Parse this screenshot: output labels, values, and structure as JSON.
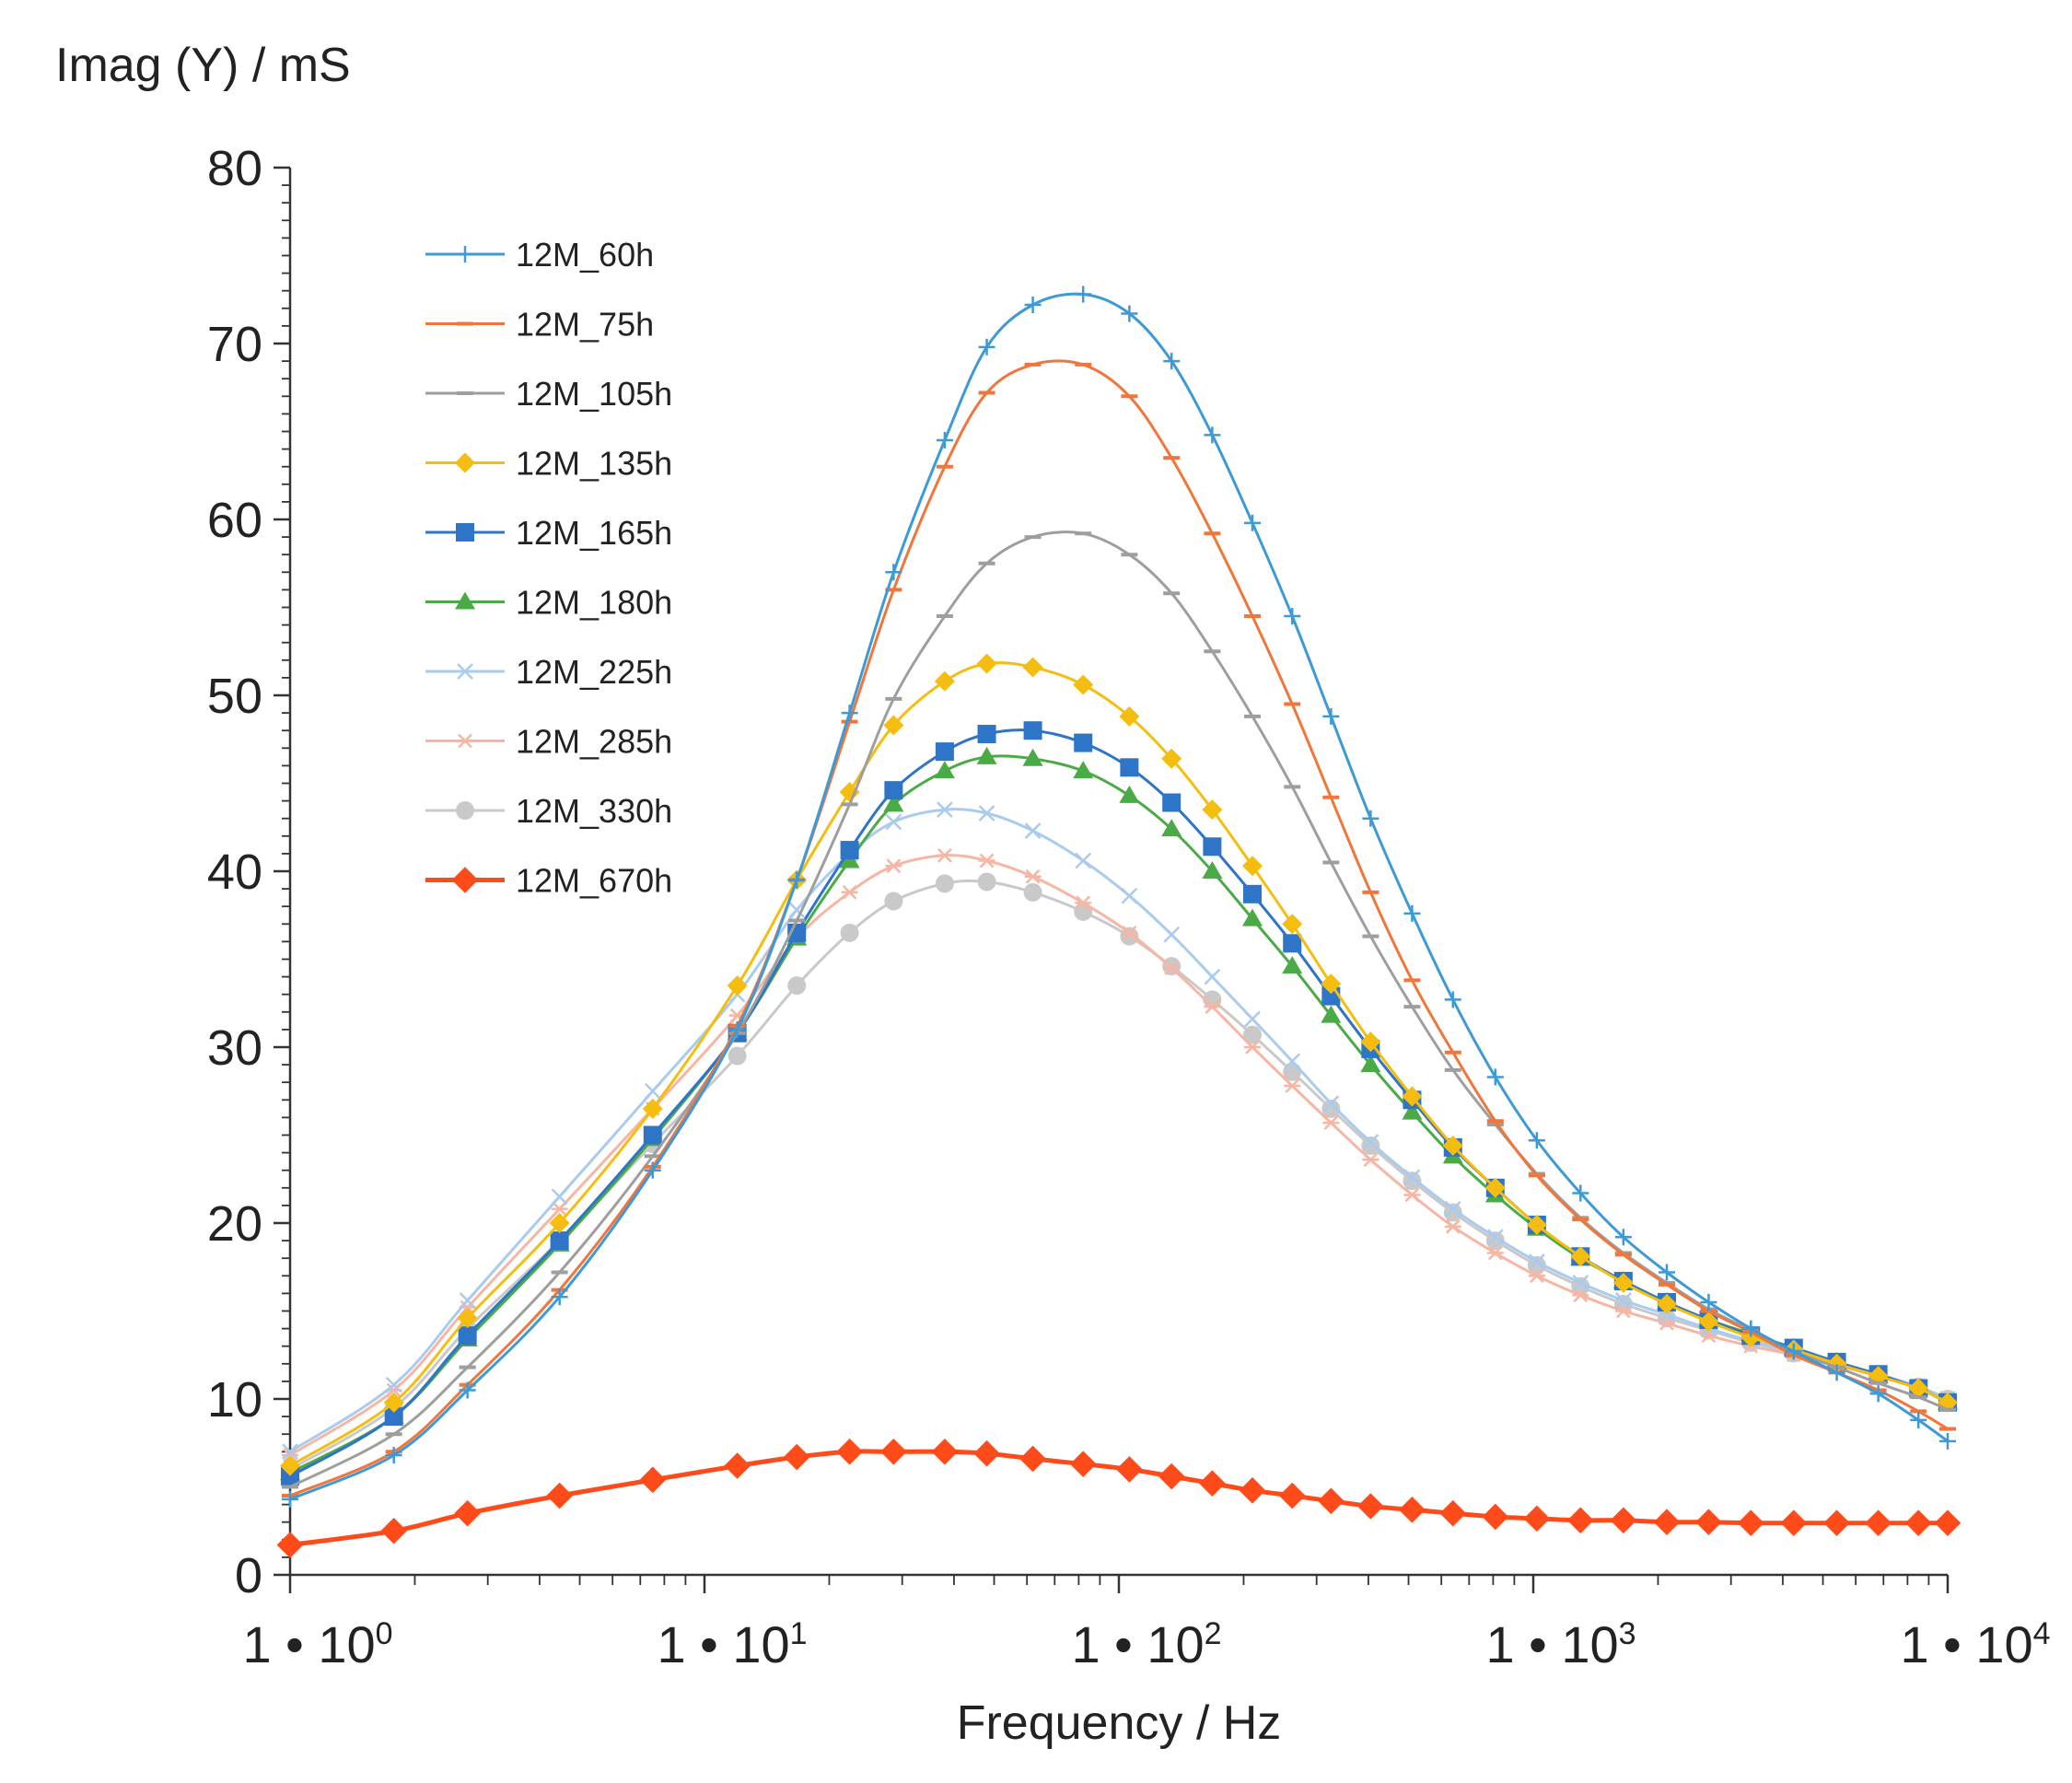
{
  "chart_data": {
    "type": "line",
    "title": "",
    "ylabel": "Imag (Y) / mS",
    "xlabel": "Frequency / Hz",
    "xscale": "log",
    "xlim": [
      1,
      10000
    ],
    "ylim": [
      0,
      80
    ],
    "yticks": [
      0,
      10,
      20,
      30,
      40,
      50,
      60,
      70,
      80
    ],
    "xticks": [
      {
        "value": 1,
        "mantissa": "1 • 10",
        "exp": "0"
      },
      {
        "value": 10,
        "mantissa": "1 • 10",
        "exp": "1"
      },
      {
        "value": 100,
        "mantissa": "1 • 10",
        "exp": "2"
      },
      {
        "value": 1000,
        "mantissa": "1 • 10",
        "exp": "3"
      },
      {
        "value": 10000,
        "mantissa": "1 • 10",
        "exp": "4"
      }
    ],
    "grid": false,
    "legend_position": "top-left",
    "x": [
      1,
      1.78,
      2.68,
      4.47,
      7.5,
      12,
      16.7,
      22.4,
      28.6,
      38,
      48,
      62,
      82,
      106,
      134,
      168,
      210,
      262,
      325,
      405,
      510,
      640,
      810,
      1020,
      1300,
      1650,
      2100,
      2650,
      3350,
      4250,
      5400,
      6800,
      8500,
      10000
    ],
    "series": [
      {
        "name": "12M_60h",
        "color": "#3d9ad6",
        "marker": "plus",
        "values": [
          4.3,
          6.8,
          10.5,
          15.8,
          23.0,
          31.0,
          39.5,
          49.0,
          57.0,
          64.5,
          69.8,
          72.2,
          72.8,
          71.7,
          69.0,
          64.8,
          59.8,
          54.5,
          48.8,
          43.0,
          37.6,
          32.7,
          28.3,
          24.7,
          21.7,
          19.2,
          17.2,
          15.5,
          14.0,
          12.7,
          11.5,
          10.3,
          8.8,
          7.6
        ]
      },
      {
        "name": "12M_75h",
        "color": "#f0763b",
        "marker": "dash",
        "values": [
          4.5,
          7.0,
          10.8,
          16.2,
          23.2,
          31.2,
          39.5,
          48.5,
          56.0,
          63.0,
          67.2,
          68.8,
          68.8,
          67.0,
          63.5,
          59.2,
          54.5,
          49.5,
          44.2,
          38.8,
          33.8,
          29.7,
          25.8,
          22.7,
          20.2,
          18.2,
          16.5,
          15.0,
          13.8,
          12.5,
          11.5,
          10.5,
          9.3,
          8.3
        ]
      },
      {
        "name": "12M_105h",
        "color": "#9e9e9e",
        "marker": "dash",
        "values": [
          5.0,
          8.0,
          11.8,
          17.2,
          23.8,
          30.8,
          37.2,
          43.8,
          49.8,
          54.5,
          57.5,
          59.0,
          59.2,
          58.0,
          55.8,
          52.5,
          48.8,
          44.8,
          40.5,
          36.3,
          32.3,
          28.7,
          25.6,
          22.8,
          20.3,
          18.3,
          16.6,
          15.1,
          13.9,
          12.7,
          11.8,
          10.9,
          10.1,
          9.4
        ]
      },
      {
        "name": "12M_135h",
        "color": "#f5bd0f",
        "marker": "diamond",
        "values": [
          6.2,
          9.8,
          14.6,
          20.0,
          26.5,
          33.5,
          39.5,
          44.5,
          48.3,
          50.8,
          51.8,
          51.6,
          50.6,
          48.8,
          46.4,
          43.5,
          40.3,
          37.0,
          33.6,
          30.3,
          27.2,
          24.4,
          22.0,
          19.9,
          18.1,
          16.6,
          15.4,
          14.4,
          13.5,
          12.8,
          12.0,
          11.3,
          10.6,
          9.8
        ]
      },
      {
        "name": "12M_165h",
        "color": "#2e74c7",
        "marker": "square",
        "values": [
          5.6,
          9.0,
          13.6,
          19.0,
          25.0,
          30.8,
          36.5,
          41.2,
          44.6,
          46.8,
          47.8,
          48.0,
          47.3,
          45.9,
          43.9,
          41.4,
          38.7,
          35.9,
          32.9,
          29.9,
          27.0,
          24.3,
          22.0,
          19.9,
          18.1,
          16.7,
          15.5,
          14.5,
          13.6,
          12.9,
          12.1,
          11.4,
          10.6,
          9.8
        ]
      },
      {
        "name": "12M_180h",
        "color": "#4aab46",
        "marker": "triangle",
        "values": [
          5.8,
          9.0,
          13.4,
          18.8,
          24.8,
          30.8,
          36.2,
          40.6,
          43.8,
          45.7,
          46.5,
          46.4,
          45.7,
          44.3,
          42.4,
          40.0,
          37.3,
          34.6,
          31.8,
          29.0,
          26.3,
          23.8,
          21.6,
          19.7,
          18.0,
          16.7,
          15.5,
          14.5,
          13.7,
          12.9,
          12.1,
          11.3,
          10.6,
          9.8
        ]
      },
      {
        "name": "12M_225h",
        "color": "#a9cbee",
        "marker": "x",
        "values": [
          7.0,
          10.8,
          15.6,
          21.5,
          27.5,
          33.0,
          37.8,
          41.0,
          42.8,
          43.5,
          43.3,
          42.3,
          40.6,
          38.6,
          36.4,
          34.0,
          31.6,
          29.2,
          26.8,
          24.6,
          22.6,
          20.8,
          19.2,
          17.8,
          16.6,
          15.6,
          14.8,
          14.0,
          13.3,
          12.7,
          12.0,
          11.4,
          10.7,
          10.0
        ]
      },
      {
        "name": "12M_285h",
        "color": "#f7b5a3",
        "marker": "asterisk",
        "values": [
          6.8,
          10.5,
          15.2,
          20.8,
          26.5,
          31.8,
          36.2,
          38.8,
          40.3,
          40.9,
          40.6,
          39.7,
          38.2,
          36.5,
          34.5,
          32.3,
          30.0,
          27.8,
          25.7,
          23.6,
          21.6,
          19.8,
          18.3,
          17.0,
          15.9,
          15.0,
          14.3,
          13.6,
          13.0,
          12.5,
          11.9,
          11.3,
          10.6,
          9.9
        ]
      },
      {
        "name": "12M_330h",
        "color": "#c9c9c9",
        "marker": "circle",
        "values": [
          6.0,
          9.5,
          14.0,
          19.0,
          24.5,
          29.5,
          33.5,
          36.5,
          38.3,
          39.3,
          39.4,
          38.8,
          37.7,
          36.3,
          34.6,
          32.7,
          30.7,
          28.6,
          26.5,
          24.4,
          22.4,
          20.6,
          19.0,
          17.6,
          16.4,
          15.4,
          14.6,
          13.9,
          13.2,
          12.6,
          12.0,
          11.4,
          10.7,
          10.0
        ]
      },
      {
        "name": "12M_670h",
        "color": "#ff4a1a",
        "marker": "diamond",
        "values": [
          1.7,
          2.5,
          3.5,
          4.5,
          5.4,
          6.2,
          6.7,
          7.0,
          7.0,
          7.0,
          6.9,
          6.6,
          6.3,
          6.0,
          5.6,
          5.2,
          4.8,
          4.5,
          4.2,
          3.9,
          3.7,
          3.5,
          3.3,
          3.2,
          3.1,
          3.1,
          3.0,
          3.0,
          2.95,
          2.95,
          2.95,
          2.95,
          2.95,
          2.95
        ]
      }
    ]
  }
}
